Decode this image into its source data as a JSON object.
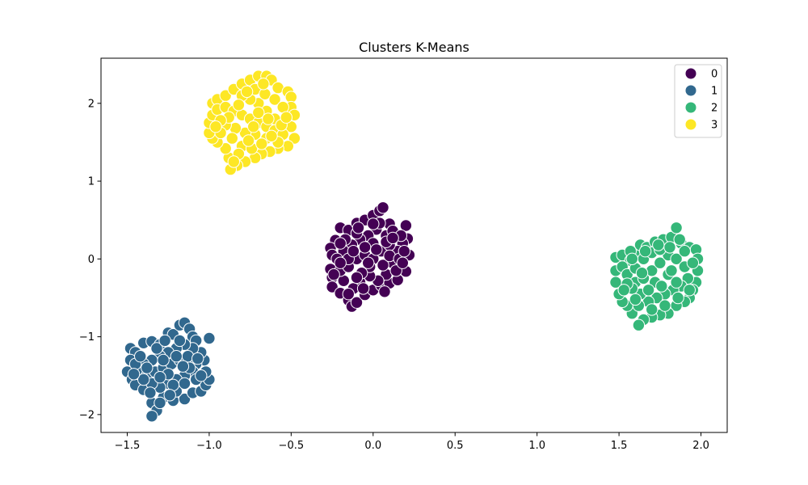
{
  "chart_data": {
    "type": "scatter",
    "title": "Clusters K-Means",
    "xlabel": "",
    "ylabel": "",
    "xlim": [
      -1.66,
      2.16
    ],
    "ylim": [
      -2.23,
      2.58
    ],
    "grid": false,
    "legend_placement": "top-right",
    "x_ticks": [
      -1.5,
      -1.0,
      -0.5,
      0.0,
      0.5,
      1.0,
      1.5,
      2.0
    ],
    "x_tick_labels": [
      "−1.5",
      "−1.0",
      "−0.5",
      "0.0",
      "0.5",
      "1.0",
      "1.5",
      "2.0"
    ],
    "y_ticks": [
      -2,
      -1,
      0,
      1,
      2
    ],
    "y_tick_labels": [
      "−2",
      "−1",
      "0",
      "1",
      "2"
    ],
    "series": [
      {
        "name": "0",
        "color": "#440154",
        "points": [
          [
            -0.23,
            0.24
          ],
          [
            -0.2,
            0.4
          ],
          [
            -0.15,
            0.37
          ],
          [
            -0.1,
            0.46
          ],
          [
            -0.05,
            0.5
          ],
          [
            0.0,
            0.56
          ],
          [
            0.04,
            0.62
          ],
          [
            0.06,
            0.66
          ],
          [
            0.1,
            0.45
          ],
          [
            0.2,
            0.43
          ],
          [
            -0.26,
            0.14
          ],
          [
            -0.25,
            0.05
          ],
          [
            -0.26,
            -0.13
          ],
          [
            -0.25,
            -0.24
          ],
          [
            -0.25,
            -0.36
          ],
          [
            -0.2,
            -0.44
          ],
          [
            -0.15,
            -0.53
          ],
          [
            -0.13,
            -0.61
          ],
          [
            -0.1,
            -0.56
          ],
          [
            -0.05,
            -0.46
          ],
          [
            0.0,
            -0.4
          ],
          [
            0.05,
            -0.34
          ],
          [
            0.1,
            -0.31
          ],
          [
            0.15,
            -0.27
          ],
          [
            0.2,
            -0.16
          ],
          [
            0.22,
            0.05
          ],
          [
            0.21,
            0.26
          ],
          [
            0.18,
            0.2
          ],
          [
            0.15,
            0.1
          ],
          [
            0.12,
            -0.05
          ],
          [
            0.08,
            -0.2
          ],
          [
            0.03,
            -0.28
          ],
          [
            -0.02,
            -0.22
          ],
          [
            -0.08,
            -0.3
          ],
          [
            -0.12,
            -0.38
          ],
          [
            -0.18,
            -0.28
          ],
          [
            -0.2,
            -0.15
          ],
          [
            -0.15,
            -0.1
          ],
          [
            -0.1,
            0.0
          ],
          [
            -0.05,
            0.05
          ],
          [
            0.0,
            0.0
          ],
          [
            0.05,
            0.1
          ],
          [
            0.1,
            0.18
          ],
          [
            0.08,
            0.3
          ],
          [
            0.02,
            0.38
          ],
          [
            -0.03,
            0.3
          ],
          [
            -0.08,
            0.25
          ],
          [
            -0.13,
            0.18
          ],
          [
            -0.18,
            0.1
          ],
          [
            -0.22,
            0.0
          ],
          [
            -0.17,
            0.25
          ],
          [
            -0.1,
            0.33
          ],
          [
            0.04,
            0.46
          ],
          [
            0.12,
            0.36
          ],
          [
            0.17,
            0.3
          ],
          [
            0.14,
            -0.15
          ],
          [
            0.06,
            -0.08
          ],
          [
            -0.02,
            -0.1
          ],
          [
            -0.07,
            -0.18
          ],
          [
            -0.15,
            0.0
          ],
          [
            0.0,
            0.2
          ],
          [
            -0.05,
            0.15
          ],
          [
            0.1,
            0.04
          ],
          [
            -0.12,
            0.1
          ],
          [
            0.16,
            0.0
          ],
          [
            -0.2,
            -0.05
          ],
          [
            -0.06,
            -0.38
          ],
          [
            0.02,
            0.12
          ],
          [
            -0.1,
            -0.24
          ],
          [
            0.08,
            0.22
          ],
          [
            -0.2,
            0.2
          ],
          [
            0.18,
            -0.05
          ],
          [
            -0.03,
            -0.05
          ],
          [
            0.12,
            0.27
          ],
          [
            -0.15,
            -0.45
          ],
          [
            0.07,
            -0.42
          ],
          [
            -0.24,
            -0.2
          ],
          [
            0.0,
            0.45
          ],
          [
            0.19,
            0.1
          ],
          [
            -0.09,
            0.4
          ]
        ]
      },
      {
        "name": "1",
        "color": "#31688e",
        "points": [
          [
            -1.48,
            -1.15
          ],
          [
            -1.45,
            -1.2
          ],
          [
            -1.4,
            -1.08
          ],
          [
            -1.35,
            -1.06
          ],
          [
            -1.3,
            -1.1
          ],
          [
            -1.25,
            -0.95
          ],
          [
            -1.22,
            -0.97
          ],
          [
            -1.18,
            -0.85
          ],
          [
            -1.15,
            -0.82
          ],
          [
            -1.12,
            -0.9
          ],
          [
            -1.1,
            -1.0
          ],
          [
            -1.08,
            -1.05
          ],
          [
            -1.0,
            -1.02
          ],
          [
            -1.48,
            -1.3
          ],
          [
            -1.5,
            -1.45
          ],
          [
            -1.47,
            -1.55
          ],
          [
            -1.45,
            -1.62
          ],
          [
            -1.4,
            -1.68
          ],
          [
            -1.35,
            -1.85
          ],
          [
            -1.32,
            -1.95
          ],
          [
            -1.35,
            -2.02
          ],
          [
            -1.28,
            -1.78
          ],
          [
            -1.22,
            -1.82
          ],
          [
            -1.15,
            -1.8
          ],
          [
            -1.1,
            -1.72
          ],
          [
            -1.05,
            -1.7
          ],
          [
            -1.02,
            -1.62
          ],
          [
            -1.0,
            -1.55
          ],
          [
            -1.02,
            -1.45
          ],
          [
            -1.03,
            -1.3
          ],
          [
            -1.05,
            -1.2
          ],
          [
            -1.1,
            -1.15
          ],
          [
            -1.15,
            -1.1
          ],
          [
            -1.2,
            -1.15
          ],
          [
            -1.25,
            -1.2
          ],
          [
            -1.3,
            -1.25
          ],
          [
            -1.35,
            -1.3
          ],
          [
            -1.4,
            -1.35
          ],
          [
            -1.43,
            -1.45
          ],
          [
            -1.38,
            -1.5
          ],
          [
            -1.33,
            -1.45
          ],
          [
            -1.28,
            -1.4
          ],
          [
            -1.23,
            -1.35
          ],
          [
            -1.18,
            -1.3
          ],
          [
            -1.13,
            -1.25
          ],
          [
            -1.08,
            -1.35
          ],
          [
            -1.1,
            -1.45
          ],
          [
            -1.15,
            -1.5
          ],
          [
            -1.2,
            -1.55
          ],
          [
            -1.25,
            -1.6
          ],
          [
            -1.3,
            -1.65
          ],
          [
            -1.35,
            -1.6
          ],
          [
            -1.4,
            -1.55
          ],
          [
            -1.2,
            -1.7
          ],
          [
            -1.15,
            -1.6
          ],
          [
            -1.08,
            -1.55
          ],
          [
            -1.25,
            -1.48
          ],
          [
            -1.3,
            -1.52
          ],
          [
            -1.38,
            -1.4
          ],
          [
            -1.45,
            -1.35
          ],
          [
            -1.2,
            -1.25
          ],
          [
            -1.12,
            -1.4
          ],
          [
            -1.28,
            -1.3
          ],
          [
            -1.32,
            -1.15
          ],
          [
            -1.18,
            -1.05
          ],
          [
            -1.42,
            -1.25
          ],
          [
            -1.27,
            -1.05
          ],
          [
            -1.05,
            -1.5
          ],
          [
            -1.22,
            -1.62
          ],
          [
            -1.36,
            -1.72
          ],
          [
            -1.16,
            -1.38
          ],
          [
            -1.46,
            -1.48
          ],
          [
            -1.3,
            -1.85
          ],
          [
            -1.07,
            -1.28
          ],
          [
            -1.24,
            -1.75
          ]
        ]
      },
      {
        "name": "2",
        "color": "#35b779",
        "points": [
          [
            1.48,
            0.02
          ],
          [
            1.52,
            0.05
          ],
          [
            1.57,
            -0.02
          ],
          [
            1.6,
            0.1
          ],
          [
            1.63,
            0.18
          ],
          [
            1.67,
            0.15
          ],
          [
            1.72,
            0.22
          ],
          [
            1.77,
            0.25
          ],
          [
            1.82,
            0.28
          ],
          [
            1.85,
            0.4
          ],
          [
            1.88,
            0.2
          ],
          [
            1.93,
            0.15
          ],
          [
            1.97,
            0.12
          ],
          [
            1.98,
            0.0
          ],
          [
            1.98,
            -0.15
          ],
          [
            1.97,
            -0.3
          ],
          [
            1.95,
            -0.4
          ],
          [
            1.93,
            -0.5
          ],
          [
            1.9,
            -0.55
          ],
          [
            1.85,
            -0.6
          ],
          [
            1.8,
            -0.7
          ],
          [
            1.75,
            -0.72
          ],
          [
            1.7,
            -0.75
          ],
          [
            1.65,
            -0.78
          ],
          [
            1.62,
            -0.85
          ],
          [
            1.58,
            -0.7
          ],
          [
            1.55,
            -0.6
          ],
          [
            1.52,
            -0.55
          ],
          [
            1.5,
            -0.45
          ],
          [
            1.48,
            -0.3
          ],
          [
            1.48,
            -0.15
          ],
          [
            1.52,
            -0.1
          ],
          [
            1.55,
            -0.2
          ],
          [
            1.6,
            -0.3
          ],
          [
            1.65,
            -0.25
          ],
          [
            1.7,
            -0.15
          ],
          [
            1.75,
            -0.05
          ],
          [
            1.8,
            0.05
          ],
          [
            1.85,
            0.0
          ],
          [
            1.9,
            -0.1
          ],
          [
            1.92,
            -0.25
          ],
          [
            1.88,
            -0.35
          ],
          [
            1.83,
            -0.4
          ],
          [
            1.78,
            -0.45
          ],
          [
            1.73,
            -0.5
          ],
          [
            1.68,
            -0.55
          ],
          [
            1.63,
            -0.45
          ],
          [
            1.58,
            -0.38
          ],
          [
            1.55,
            -0.32
          ],
          [
            1.6,
            -0.12
          ],
          [
            1.65,
            0.0
          ],
          [
            1.7,
            0.08
          ],
          [
            1.75,
            0.12
          ],
          [
            1.8,
            -0.2
          ],
          [
            1.85,
            -0.3
          ],
          [
            1.72,
            -0.3
          ],
          [
            1.68,
            -0.4
          ],
          [
            1.62,
            -0.6
          ],
          [
            1.78,
            -0.6
          ],
          [
            1.86,
            -0.5
          ],
          [
            1.95,
            -0.05
          ],
          [
            1.9,
            0.1
          ],
          [
            1.66,
            0.1
          ],
          [
            1.57,
            0.1
          ],
          [
            1.53,
            -0.4
          ],
          [
            1.7,
            -0.65
          ],
          [
            1.82,
            -0.15
          ],
          [
            1.76,
            -0.35
          ],
          [
            1.64,
            -0.18
          ],
          [
            1.58,
            0.0
          ],
          [
            1.87,
            0.25
          ],
          [
            1.93,
            -0.4
          ],
          [
            1.74,
            0.18
          ],
          [
            1.6,
            -0.52
          ],
          [
            1.81,
            0.15
          ]
        ]
      },
      {
        "name": "3",
        "color": "#fde725",
        "points": [
          [
            -0.98,
            2.0
          ],
          [
            -0.95,
            2.05
          ],
          [
            -0.9,
            2.1
          ],
          [
            -0.85,
            2.18
          ],
          [
            -0.8,
            2.25
          ],
          [
            -0.75,
            2.3
          ],
          [
            -0.7,
            2.35
          ],
          [
            -0.65,
            2.35
          ],
          [
            -0.62,
            2.3
          ],
          [
            -0.58,
            2.2
          ],
          [
            -0.52,
            2.15
          ],
          [
            -0.5,
            2.08
          ],
          [
            -0.5,
            1.95
          ],
          [
            -0.48,
            1.85
          ],
          [
            -0.5,
            1.7
          ],
          [
            -0.48,
            1.55
          ],
          [
            -0.52,
            1.45
          ],
          [
            -0.58,
            1.42
          ],
          [
            -0.63,
            1.38
          ],
          [
            -0.68,
            1.35
          ],
          [
            -0.72,
            1.3
          ],
          [
            -0.78,
            1.25
          ],
          [
            -0.83,
            1.2
          ],
          [
            -0.87,
            1.15
          ],
          [
            -0.88,
            1.3
          ],
          [
            -0.9,
            1.42
          ],
          [
            -0.95,
            1.5
          ],
          [
            -0.98,
            1.55
          ],
          [
            -1.0,
            1.62
          ],
          [
            -1.0,
            1.75
          ],
          [
            -0.98,
            1.85
          ],
          [
            -0.95,
            1.92
          ],
          [
            -0.9,
            1.95
          ],
          [
            -0.85,
            1.9
          ],
          [
            -0.8,
            1.85
          ],
          [
            -0.75,
            1.8
          ],
          [
            -0.7,
            1.75
          ],
          [
            -0.65,
            1.7
          ],
          [
            -0.6,
            1.65
          ],
          [
            -0.55,
            1.6
          ],
          [
            -0.6,
            1.8
          ],
          [
            -0.65,
            1.9
          ],
          [
            -0.7,
            2.0
          ],
          [
            -0.75,
            2.05
          ],
          [
            -0.8,
            2.1
          ],
          [
            -0.72,
            2.18
          ],
          [
            -0.66,
            2.12
          ],
          [
            -0.6,
            2.05
          ],
          [
            -0.55,
            1.95
          ],
          [
            -0.58,
            1.5
          ],
          [
            -0.65,
            1.55
          ],
          [
            -0.72,
            1.6
          ],
          [
            -0.78,
            1.62
          ],
          [
            -0.84,
            1.68
          ],
          [
            -0.9,
            1.72
          ],
          [
            -0.93,
            1.62
          ],
          [
            -0.86,
            1.55
          ],
          [
            -0.8,
            1.45
          ],
          [
            -0.74,
            1.42
          ],
          [
            -0.68,
            1.48
          ],
          [
            -0.82,
            1.35
          ],
          [
            -0.76,
            1.52
          ],
          [
            -0.88,
            1.82
          ],
          [
            -0.93,
            1.78
          ],
          [
            -0.62,
            1.58
          ],
          [
            -0.56,
            1.72
          ],
          [
            -0.7,
            1.88
          ],
          [
            -0.82,
            1.98
          ],
          [
            -0.67,
            2.25
          ],
          [
            -0.77,
            2.15
          ],
          [
            -0.85,
            1.25
          ],
          [
            -0.53,
            1.82
          ],
          [
            -0.96,
            1.7
          ],
          [
            -0.73,
            1.7
          ],
          [
            -0.64,
            1.8
          ]
        ]
      }
    ]
  }
}
